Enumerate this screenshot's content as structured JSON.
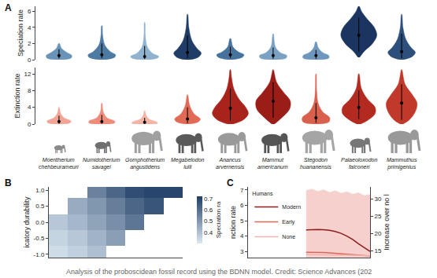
{
  "chart_data": [
    {
      "type": "violin",
      "title": "A",
      "ylabel": "Speciation rate",
      "categories": [
        "Moeritherium chehbeurameuri",
        "Numidotherium savagei",
        "Gomphotherium angustidens",
        "Megabelodon lulli",
        "Anancus arvernensis",
        "Mammut americanum",
        "Stegodon huananensis",
        "Palaeoloxodon falconeri",
        "Mammuthus primigenius"
      ],
      "colors": [
        "#6a93b8",
        "#4d7aa3",
        "#8fb3cf",
        "#1f3d66",
        "#46729c",
        "#7aa0c2",
        "#6e97bd",
        "#1b3560",
        "#2c4f7c"
      ],
      "densities": [
        {
          "y": [
            0,
            0.2,
            0.5,
            0.9,
            1.4,
            2.0
          ],
          "width": [
            0.05,
            0.28,
            0.3,
            0.18,
            0.06,
            0.01
          ]
        },
        {
          "y": [
            0,
            0.3,
            0.6,
            1.0,
            1.8,
            3.0,
            4.2
          ],
          "width": [
            0.05,
            0.3,
            0.32,
            0.2,
            0.07,
            0.02,
            0.005
          ]
        },
        {
          "y": [
            0,
            0.2,
            0.4,
            0.8,
            1.6,
            3.0,
            4.6
          ],
          "width": [
            0.05,
            0.3,
            0.33,
            0.18,
            0.06,
            0.015,
            0.005
          ]
        },
        {
          "y": [
            0,
            0.3,
            0.8,
            1.4,
            2.4,
            4.0,
            5.6
          ],
          "width": [
            0.04,
            0.25,
            0.32,
            0.22,
            0.1,
            0.03,
            0.005
          ]
        },
        {
          "y": [
            0,
            0.3,
            0.6,
            1.0,
            1.6,
            2.6
          ],
          "width": [
            0.05,
            0.28,
            0.32,
            0.18,
            0.06,
            0.01
          ]
        },
        {
          "y": [
            0,
            0.2,
            0.5,
            0.9,
            1.6,
            3.2
          ],
          "width": [
            0.05,
            0.3,
            0.32,
            0.16,
            0.05,
            0.005
          ]
        },
        {
          "y": [
            0,
            0.2,
            0.5,
            0.9,
            1.5,
            2.2
          ],
          "width": [
            0.06,
            0.3,
            0.3,
            0.15,
            0.05,
            0.01
          ]
        },
        {
          "y": [
            0.3,
            1.0,
            2.0,
            3.0,
            4.0,
            5.0,
            6.0,
            6.6
          ],
          "width": [
            0.02,
            0.12,
            0.32,
            0.42,
            0.36,
            0.2,
            0.06,
            0.01
          ]
        },
        {
          "y": [
            0,
            0.4,
            0.9,
            1.5,
            2.5,
            4.0,
            5.6
          ],
          "width": [
            0.04,
            0.25,
            0.32,
            0.22,
            0.1,
            0.03,
            0.005
          ]
        }
      ],
      "medians": [
        0.5,
        0.6,
        0.4,
        0.9,
        0.6,
        0.5,
        0.5,
        3.0,
        1.0
      ],
      "intervals": [
        [
          0.15,
          1.3
        ],
        [
          0.2,
          2.0
        ],
        [
          0.1,
          1.7
        ],
        [
          0.2,
          3.0
        ],
        [
          0.2,
          1.6
        ],
        [
          0.1,
          1.5
        ],
        [
          0.1,
          1.2
        ],
        [
          1.0,
          5.2
        ],
        [
          0.2,
          3.2
        ]
      ],
      "ylim": [
        0,
        6.6
      ],
      "yticks": [
        0,
        2,
        4,
        6
      ],
      "grid": false,
      "tick_labels": "y"
    },
    {
      "type": "violin",
      "ylabel": "Extinction rate",
      "categories": [
        "Moeritherium chehbeurameuri",
        "Numidotherium savagei",
        "Gomphotherium angustidens",
        "Megabelodon lulli",
        "Anancus arvernensis",
        "Mammut americanum",
        "Stegodon huananensis",
        "Palaeoloxodon falconeri",
        "Mammuthus primigenius"
      ],
      "colors": [
        "#f2a595",
        "#ee8b79",
        "#f4b3a5",
        "#e06a55",
        "#a8231c",
        "#9a1d18",
        "#d9604c",
        "#b32a20",
        "#c0392b"
      ],
      "densities": [
        {
          "y": [
            0,
            0.3,
            0.7,
            1.5,
            2.5,
            4.0
          ],
          "width": [
            0.05,
            0.26,
            0.28,
            0.12,
            0.04,
            0.005
          ]
        },
        {
          "y": [
            0,
            0.3,
            0.7,
            1.5,
            3.0,
            5.0
          ],
          "width": [
            0.05,
            0.3,
            0.3,
            0.12,
            0.03,
            0.005
          ]
        },
        {
          "y": [
            0,
            0.2,
            0.5,
            1.2,
            2.2,
            3.2
          ],
          "width": [
            0.06,
            0.3,
            0.28,
            0.1,
            0.03,
            0.005
          ]
        },
        {
          "y": [
            0,
            0.5,
            1.2,
            2.5,
            4.5,
            7.0
          ],
          "width": [
            0.04,
            0.25,
            0.3,
            0.15,
            0.05,
            0.005
          ]
        },
        {
          "y": [
            0,
            1.0,
            2.5,
            4.0,
            6.0,
            8.5,
            11,
            13
          ],
          "width": [
            0.05,
            0.3,
            0.42,
            0.36,
            0.2,
            0.08,
            0.03,
            0.005
          ]
        },
        {
          "y": [
            0,
            1.5,
            3.5,
            5.5,
            7.5,
            10,
            13
          ],
          "width": [
            0.03,
            0.2,
            0.38,
            0.4,
            0.25,
            0.08,
            0.005
          ]
        },
        {
          "y": [
            0,
            0.5,
            1.5,
            3.0,
            5.0,
            8.0,
            12
          ],
          "width": [
            0.05,
            0.3,
            0.32,
            0.15,
            0.05,
            0.015,
            0.003
          ]
        },
        {
          "y": [
            0,
            1.0,
            2.5,
            4.0,
            6.0,
            8.5,
            12
          ],
          "width": [
            0.04,
            0.22,
            0.38,
            0.38,
            0.2,
            0.06,
            0.005
          ]
        },
        {
          "y": [
            0,
            1.0,
            3.0,
            5.0,
            7.0,
            9.5,
            13
          ],
          "width": [
            0.03,
            0.18,
            0.32,
            0.36,
            0.25,
            0.08,
            0.005
          ]
        }
      ],
      "medians": [
        0.6,
        0.6,
        0.4,
        1.2,
        3.8,
        5.5,
        1.5,
        4.0,
        5.0
      ],
      "intervals": [
        [
          0.1,
          2.0
        ],
        [
          0.1,
          2.2
        ],
        [
          0.1,
          1.5
        ],
        [
          0.2,
          4.0
        ],
        [
          0.8,
          8.5
        ],
        [
          1.5,
          10
        ],
        [
          0.3,
          5.0
        ],
        [
          1.2,
          8.0
        ],
        [
          1.0,
          9.5
        ]
      ],
      "ylim": [
        0,
        13.5
      ],
      "yticks": [
        0,
        4,
        8,
        12
      ],
      "grid": false,
      "tick_labels": "y"
    },
    {
      "type": "heatmap",
      "title": "B",
      "ylabel": "icatory durability",
      "x": [
        0,
        1,
        2,
        3,
        4,
        5,
        6
      ],
      "y": [
        -1,
        -0.5,
        0,
        0.5,
        1
      ],
      "z": [
        [
          0.33,
          0.36,
          0.4,
          null,
          null,
          null,
          null
        ],
        [
          0.35,
          0.38,
          0.43,
          0.48,
          null,
          null,
          null
        ],
        [
          0.38,
          0.42,
          0.47,
          0.52,
          0.58,
          null,
          null
        ],
        [
          null,
          0.45,
          0.5,
          0.56,
          0.62,
          0.66,
          null
        ],
        [
          null,
          null,
          0.55,
          0.62,
          0.68,
          0.7,
          0.7
        ]
      ],
      "colors": [
        "#dbe8f2",
        "#1f3d66"
      ],
      "colorbar": {
        "title": "Speciation ra",
        "range": [
          0.3,
          0.72
        ],
        "ticks": [
          0.4,
          0.5,
          0.6,
          0.7
        ]
      },
      "xlim": [
        -0.5,
        6.5
      ],
      "ylim": [
        -1.1,
        1.1
      ],
      "yticks": [
        {
          "value": -1,
          "label": "-1.0"
        },
        {
          "value": -0.5,
          "label": "-0.5"
        },
        {
          "value": 0,
          "label": "0.0"
        },
        {
          "value": 0.5,
          "label": "0.5"
        },
        {
          "value": 1,
          "label": "1.0"
        }
      ],
      "grid": false,
      "tick_labels": "y"
    },
    {
      "type": "line",
      "title": "C",
      "ylabel": "nction rate",
      "y2label": "Increase over no l",
      "legend_title": "Humans",
      "x": [
        5,
        5.5,
        6,
        6.5,
        7,
        7.5,
        8,
        8.5,
        9,
        9.5,
        10,
        10.5
      ],
      "series": [
        {
          "type": "area",
          "axis": "y2",
          "color": "#f6d0cc",
          "values": [
            32.5,
            32.9,
            32.2,
            32.7,
            31.9,
            32.4,
            31.7,
            32.1,
            31.4,
            31.8,
            31.0,
            31.3
          ]
        },
        {
          "name": "Modern",
          "type": "line",
          "color": "#8b1c1c",
          "line_style": "solid",
          "values": [
            4.4,
            4.42,
            4.43,
            4.42,
            4.38,
            4.3,
            4.18,
            4.0,
            3.78,
            3.5,
            3.25,
            3.0
          ]
        },
        {
          "name": "Early",
          "type": "line",
          "color": "#d9665b",
          "line_style": "solid",
          "values": [
            2.95,
            2.95,
            2.94,
            2.93,
            2.91,
            2.88,
            2.85,
            2.82,
            2.79,
            2.76,
            2.73,
            2.7
          ]
        },
        {
          "name": "None",
          "type": "line",
          "color": "#f1b5ad",
          "line_style": "solid",
          "values": [
            2.8,
            2.8,
            2.79,
            2.79,
            2.78,
            2.77,
            2.76,
            2.75,
            2.74,
            2.73,
            2.72,
            2.71
          ]
        }
      ],
      "xlim": [
        0,
        10.5
      ],
      "ylim": [
        2.6,
        7.2
      ],
      "yticks": [
        3,
        4,
        5,
        6,
        7
      ],
      "y2lim": [
        13,
        33.5
      ],
      "y2ticks": [
        15,
        20,
        25,
        30
      ],
      "legend": "upper left",
      "grid": false,
      "tick_labels": "y"
    }
  ],
  "caption": "Analysis of the proboscidean fossil record using the BDNN model. Credit: Science Advances (202"
}
